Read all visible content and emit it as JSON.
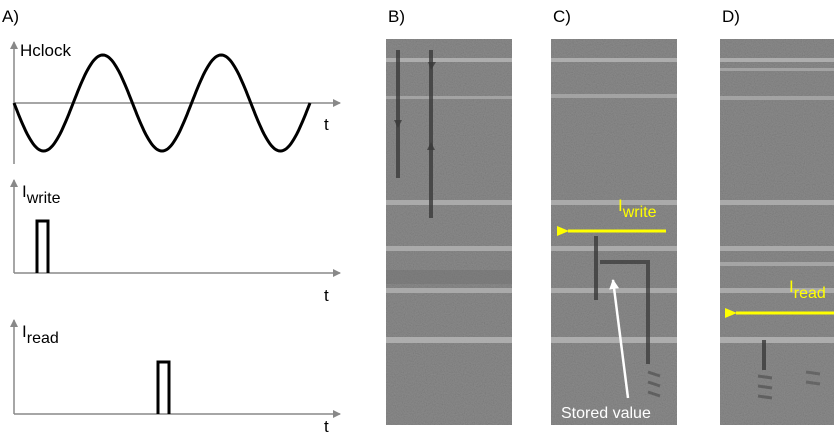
{
  "panels": {
    "a": {
      "label": "A)"
    },
    "b": {
      "label": "B)"
    },
    "c": {
      "label": "C)"
    },
    "d": {
      "label": "D)"
    }
  },
  "plots": {
    "clock": {
      "ylabel": "Hclock",
      "xlabel": "t"
    },
    "write": {
      "ylabel_main": "I",
      "ylabel_sub": "write",
      "xlabel": "t"
    },
    "read": {
      "ylabel_main": "I",
      "ylabel_sub": "read",
      "xlabel": "t"
    }
  },
  "annotations": {
    "c_arrow_main": "I",
    "c_arrow_sub": "write",
    "c_stored": "Stored value",
    "d_arrow_main": "I",
    "d_arrow_sub": "read"
  },
  "colors": {
    "annotation": "#ffff00",
    "axis": "#888888",
    "micrograph": "#8c8c8c"
  }
}
